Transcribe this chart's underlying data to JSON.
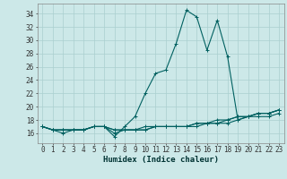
{
  "xlabel": "Humidex (Indice chaleur)",
  "ylabel": "",
  "background_color": "#cce8e8",
  "grid_color": "#aacfcf",
  "line_color": "#006060",
  "x": [
    0,
    1,
    2,
    3,
    4,
    5,
    6,
    7,
    8,
    9,
    10,
    11,
    12,
    13,
    14,
    15,
    16,
    17,
    18,
    19,
    20,
    21,
    22,
    23
  ],
  "series": [
    [
      17,
      16.5,
      16,
      16.5,
      16.5,
      17,
      17,
      15.5,
      17,
      18.5,
      22,
      25,
      25.5,
      29.5,
      34.5,
      33.5,
      28.5,
      33,
      27.5,
      18,
      18.5,
      19,
      19,
      19.5
    ],
    [
      17,
      16.5,
      16.5,
      16.5,
      16.5,
      17,
      17,
      16,
      16.5,
      16.5,
      17,
      17,
      17,
      17,
      17,
      17,
      17.5,
      17.5,
      17.5,
      18,
      18.5,
      18.5,
      18.5,
      19
    ],
    [
      17,
      16.5,
      16.5,
      16.5,
      16.5,
      17,
      17,
      16.5,
      16.5,
      16.5,
      16.5,
      17,
      17,
      17,
      17,
      17.5,
      17.5,
      17.5,
      18,
      18.5,
      18.5,
      19,
      19,
      19.5
    ],
    [
      17,
      16.5,
      16.5,
      16.5,
      16.5,
      17,
      17,
      16.5,
      16.5,
      16.5,
      16.5,
      17,
      17,
      17,
      17,
      17.5,
      17.5,
      18,
      18,
      18.5,
      18.5,
      19,
      19,
      19.5
    ]
  ],
  "ylim": [
    14.5,
    35.5
  ],
  "yticks": [
    16,
    18,
    20,
    22,
    24,
    26,
    28,
    30,
    32,
    34
  ],
  "xticks": [
    0,
    1,
    2,
    3,
    4,
    5,
    6,
    7,
    8,
    9,
    10,
    11,
    12,
    13,
    14,
    15,
    16,
    17,
    18,
    19,
    20,
    21,
    22,
    23
  ],
  "xlim": [
    -0.5,
    23.5
  ],
  "marker": "+",
  "marker_size": 3,
  "line_width": 0.8,
  "tick_fontsize": 5.5,
  "xlabel_fontsize": 6.5
}
